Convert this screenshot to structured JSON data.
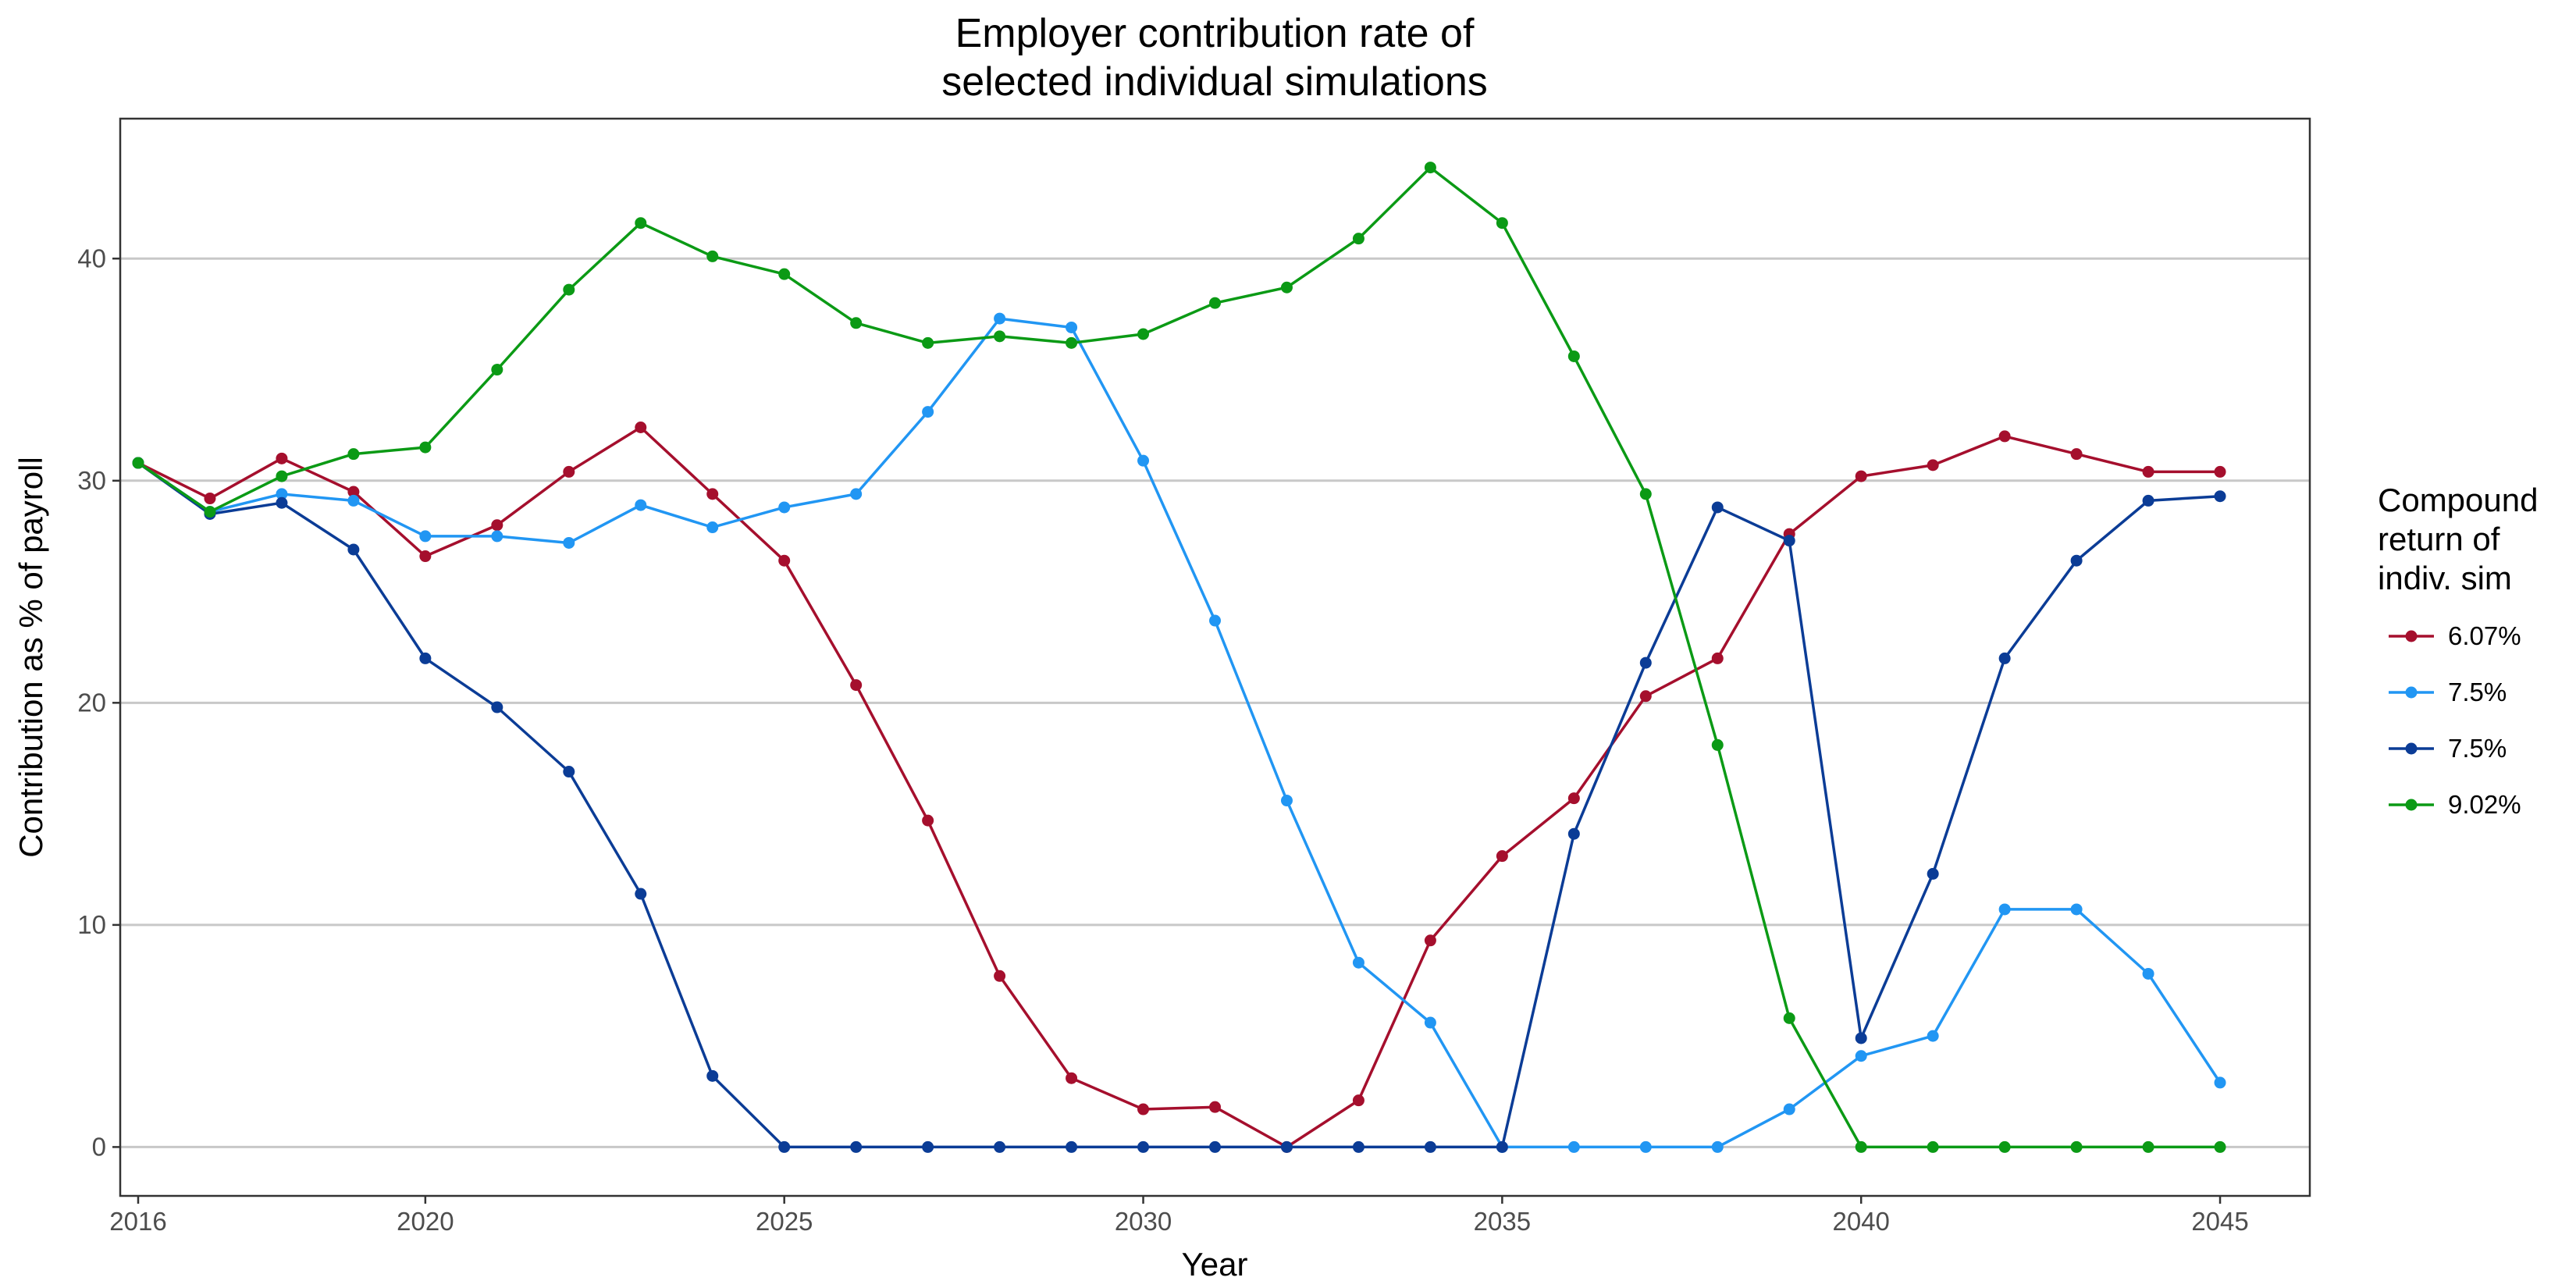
{
  "chart_data": {
    "type": "line",
    "title": "Employer contribution rate of\nselected individual simulations",
    "title_lines": [
      "Employer contribution rate of",
      "selected individual simulations"
    ],
    "xlabel": "Year",
    "ylabel": "Contribution as % of payroll",
    "xlim": [
      2015.75,
      2046.25
    ],
    "ylim": [
      -2.2,
      46.3
    ],
    "x_ticks": [
      2016,
      2020,
      2025,
      2030,
      2035,
      2040,
      2045
    ],
    "y_ticks": [
      0,
      10,
      20,
      30,
      40
    ],
    "grid": {
      "major_y": true,
      "major_x": false
    },
    "legend": {
      "position": "right",
      "title": "Compound\nreturn of\nindiv. sim",
      "title_lines": [
        "Compound",
        "return of",
        "indiv. sim"
      ]
    },
    "x": [
      2016,
      2017,
      2018,
      2019,
      2020,
      2021,
      2022,
      2023,
      2024,
      2025,
      2026,
      2027,
      2028,
      2029,
      2030,
      2031,
      2032,
      2033,
      2034,
      2035,
      2036,
      2037,
      2038,
      2039,
      2040,
      2041,
      2042,
      2043,
      2044,
      2045
    ],
    "series": [
      {
        "name": "6.07%",
        "color": "#a50f2d",
        "values": [
          30.8,
          29.2,
          31.0,
          29.5,
          26.6,
          28.0,
          30.4,
          32.4,
          29.4,
          26.4,
          20.8,
          14.7,
          7.7,
          3.1,
          1.7,
          1.8,
          0.0,
          2.1,
          9.3,
          13.1,
          15.7,
          20.3,
          22.0,
          27.6,
          30.2,
          30.7,
          32.0,
          31.2,
          30.4,
          30.4
        ]
      },
      {
        "name": "7.5%",
        "color": "#2196f3",
        "values": [
          30.8,
          28.6,
          29.4,
          29.1,
          27.5,
          27.5,
          27.2,
          28.9,
          27.9,
          28.8,
          29.4,
          33.1,
          37.3,
          36.9,
          30.9,
          23.7,
          15.6,
          8.3,
          5.6,
          0.0,
          0.0,
          0.0,
          0.0,
          1.7,
          4.1,
          5.0,
          10.7,
          10.7,
          7.8,
          2.9
        ]
      },
      {
        "name": "7.5%",
        "color": "#0b3c96",
        "values": [
          30.8,
          28.5,
          29.0,
          26.9,
          22.0,
          19.8,
          16.9,
          11.4,
          3.2,
          0.0,
          0.0,
          0.0,
          0.0,
          0.0,
          0.0,
          0.0,
          0.0,
          0.0,
          0.0,
          0.0,
          14.1,
          21.8,
          28.8,
          27.3,
          4.9,
          12.3,
          22.0,
          26.4,
          29.1,
          29.3
        ]
      },
      {
        "name": "9.02%",
        "color": "#0b9a15",
        "values": [
          30.8,
          28.6,
          30.2,
          31.2,
          31.5,
          35.0,
          38.6,
          41.6,
          40.1,
          39.3,
          37.1,
          36.2,
          36.5,
          36.2,
          36.6,
          38.0,
          38.7,
          40.9,
          44.1,
          41.6,
          35.6,
          29.4,
          18.1,
          5.8,
          0.0,
          0.0,
          0.0,
          0.0,
          0.0,
          0.0
        ]
      }
    ]
  }
}
